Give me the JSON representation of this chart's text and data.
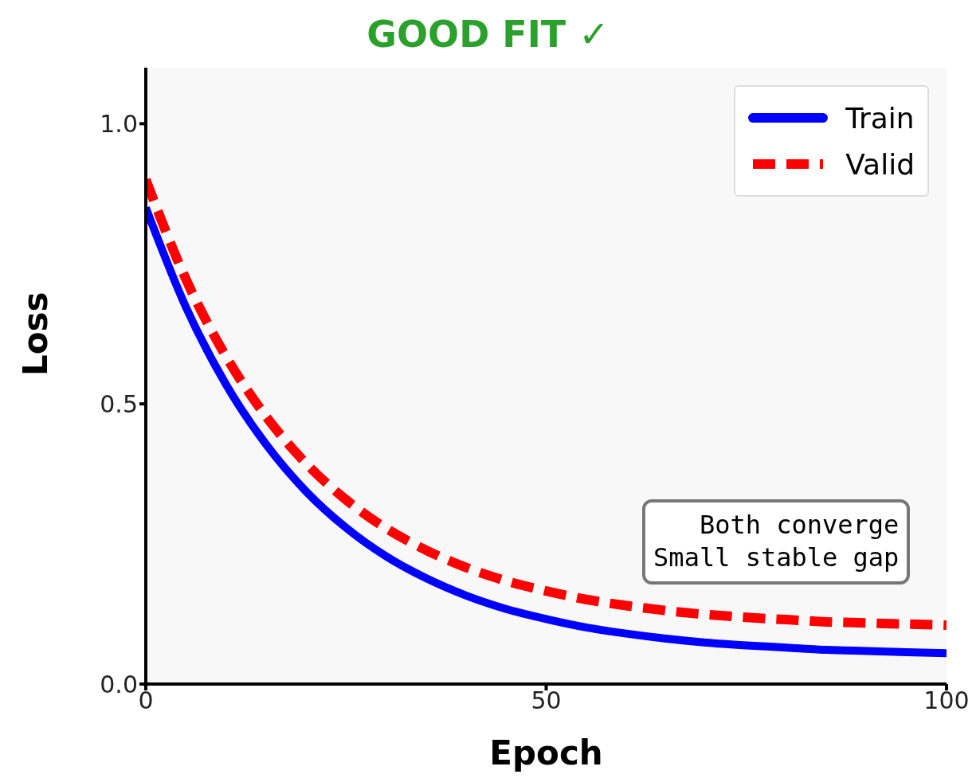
{
  "chart_data": {
    "type": "line",
    "title": "GOOD FIT ✓",
    "xlabel": "Epoch",
    "ylabel": "Loss",
    "x": [
      0,
      5,
      10,
      15,
      20,
      25,
      30,
      35,
      40,
      45,
      50,
      55,
      60,
      65,
      70,
      75,
      80,
      85,
      90,
      95,
      100
    ],
    "series": [
      {
        "name": "Train",
        "color": "#0000ff",
        "line_style": "solid",
        "values": [
          0.85,
          0.673,
          0.535,
          0.428,
          0.344,
          0.279,
          0.228,
          0.189,
          0.158,
          0.134,
          0.116,
          0.101,
          0.09,
          0.081,
          0.074,
          0.069,
          0.065,
          0.061,
          0.059,
          0.057,
          0.055
        ]
      },
      {
        "name": "Valid",
        "color": "#ff0000",
        "line_style": "dashed",
        "values": [
          0.9,
          0.723,
          0.585,
          0.478,
          0.394,
          0.329,
          0.278,
          0.239,
          0.208,
          0.184,
          0.166,
          0.151,
          0.14,
          0.131,
          0.124,
          0.119,
          0.115,
          0.111,
          0.109,
          0.107,
          0.105
        ]
      }
    ],
    "xlim": [
      0,
      100
    ],
    "xticks": [
      0,
      50,
      100
    ],
    "ylim": [
      0,
      1.1
    ],
    "yticks": [
      {
        "value": 0,
        "label": "0.0"
      },
      {
        "value": 0.5,
        "label": "0.5"
      },
      {
        "value": 1,
        "label": "1.0"
      }
    ],
    "annotations": [
      "Both converge\nSmall stable gap"
    ],
    "grid": false,
    "legend": "top right",
    "marker": "none"
  }
}
